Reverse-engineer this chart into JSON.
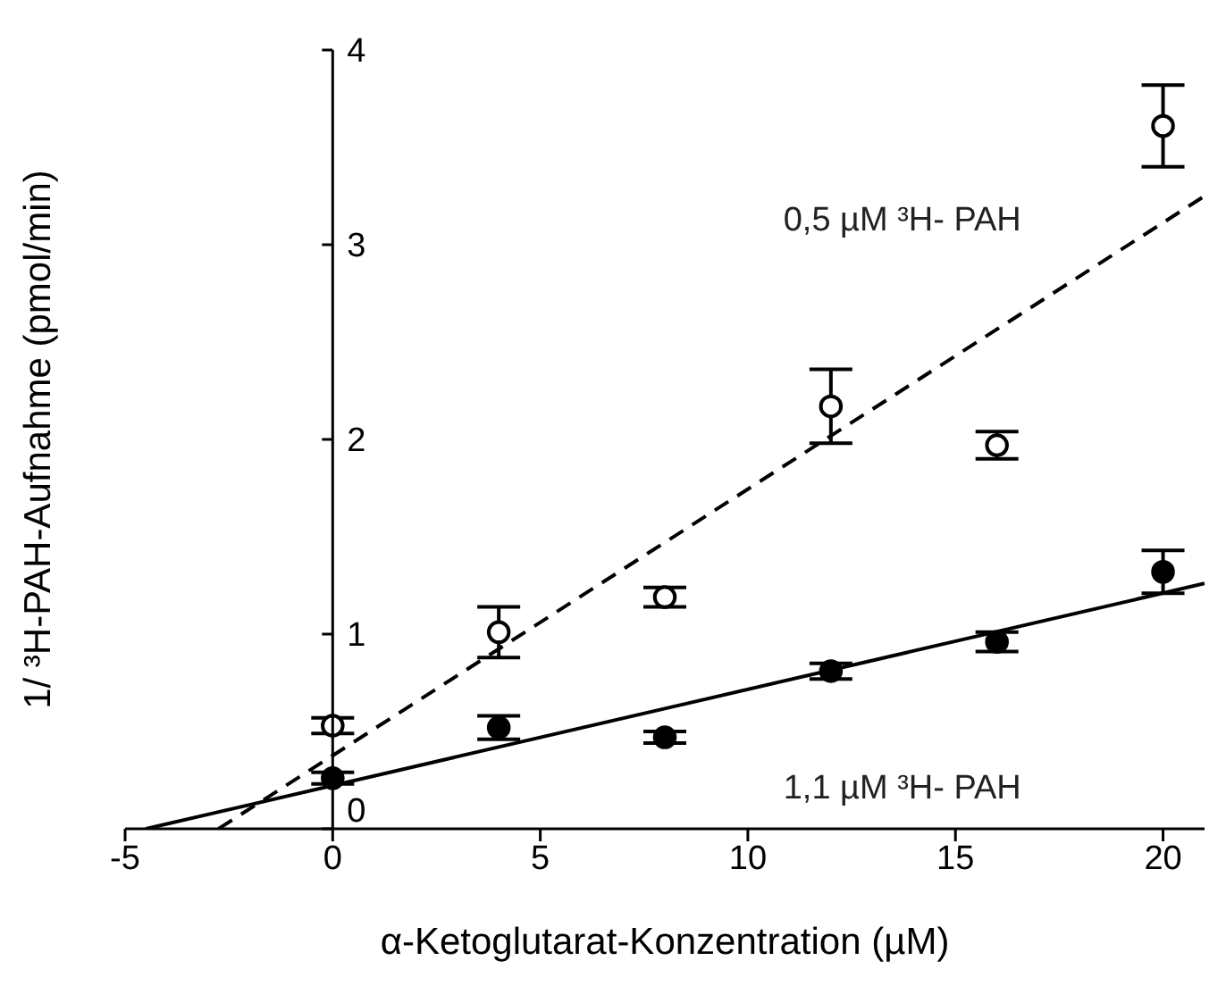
{
  "chart_data": {
    "type": "scatter",
    "xlabel": "α-Ketoglutarat-Konzentration (µM)",
    "ylabel": "1/ ³H-PAH-Aufnahme (pmol/min)",
    "xlim": [
      -5,
      21
    ],
    "xticks": [
      -5,
      0,
      5,
      10,
      15,
      20
    ],
    "ylim": [
      0,
      4
    ],
    "yticks": [
      0,
      1,
      2,
      3,
      4
    ],
    "marker": "circle",
    "series": [
      {
        "color": "#ffffff",
        "x": [
          0,
          4,
          8,
          12,
          16,
          20
        ],
        "values": [
          0.53,
          1.01,
          1.19,
          2.17,
          1.97,
          3.61
        ],
        "errors": [
          0.04,
          0.13,
          0.05,
          0.19,
          0.07,
          0.21
        ]
      },
      {
        "color": "#000000",
        "x": [
          0,
          4,
          8,
          12,
          16,
          20
        ],
        "values": [
          0.26,
          0.52,
          0.47,
          0.81,
          0.96,
          1.32
        ],
        "errors": [
          0.03,
          0.06,
          0.03,
          0.04,
          0.05,
          0.11
        ]
      },
      {
        "type": "line",
        "name": "0,5 µM ³H- PAH",
        "color": "#000000",
        "marker": "none",
        "line_style": "dashed",
        "x": [
          -2.75,
          21
        ],
        "values": [
          0,
          3.25
        ]
      },
      {
        "type": "line",
        "name": "1,1 µM ³H- PAH",
        "color": "#000000",
        "marker": "none",
        "line_style": "solid",
        "x": [
          -4.5,
          21
        ],
        "values": [
          0,
          1.26
        ]
      }
    ]
  }
}
